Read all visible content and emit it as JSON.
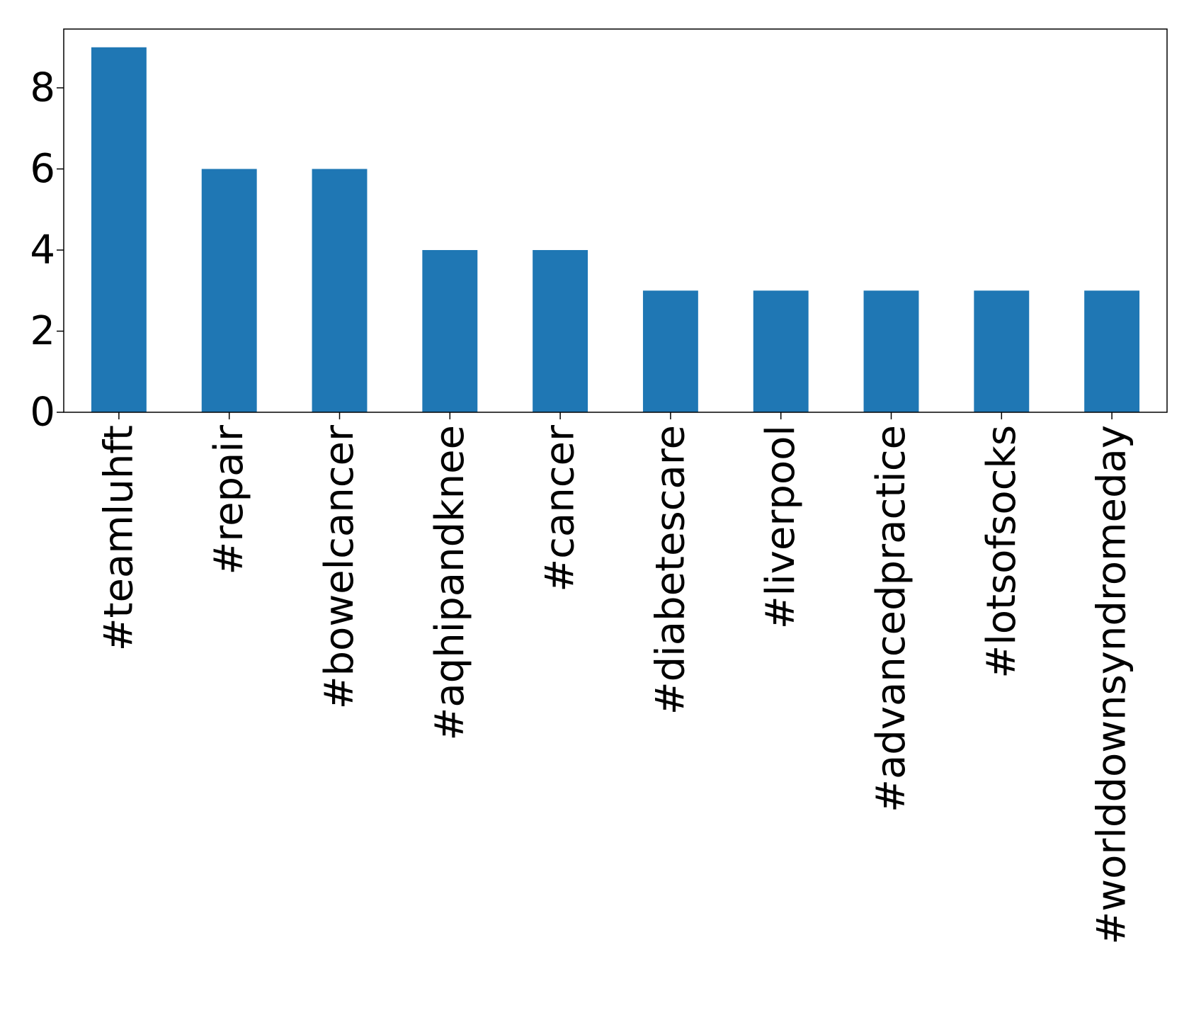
{
  "chart_data": {
    "type": "bar",
    "title": "",
    "xlabel": "",
    "ylabel": "",
    "categories": [
      "#teamluhft",
      "#repair",
      "#bowelcancer",
      "#aqhipandknee",
      "#cancer",
      "#diabetescare",
      "#liverpool",
      "#advancedpractice",
      "#lotsofsocks",
      "#worlddownsyndromeday"
    ],
    "values": [
      9,
      6,
      6,
      4,
      4,
      3,
      3,
      3,
      3,
      3
    ],
    "ylim": [
      0,
      9.45
    ],
    "yticks": [
      0,
      2,
      4,
      6,
      8
    ],
    "ytick_labels": [
      "0",
      "2",
      "4",
      "6",
      "8"
    ],
    "grid": false,
    "legend": "none",
    "bar_color": "#1f77b4"
  }
}
